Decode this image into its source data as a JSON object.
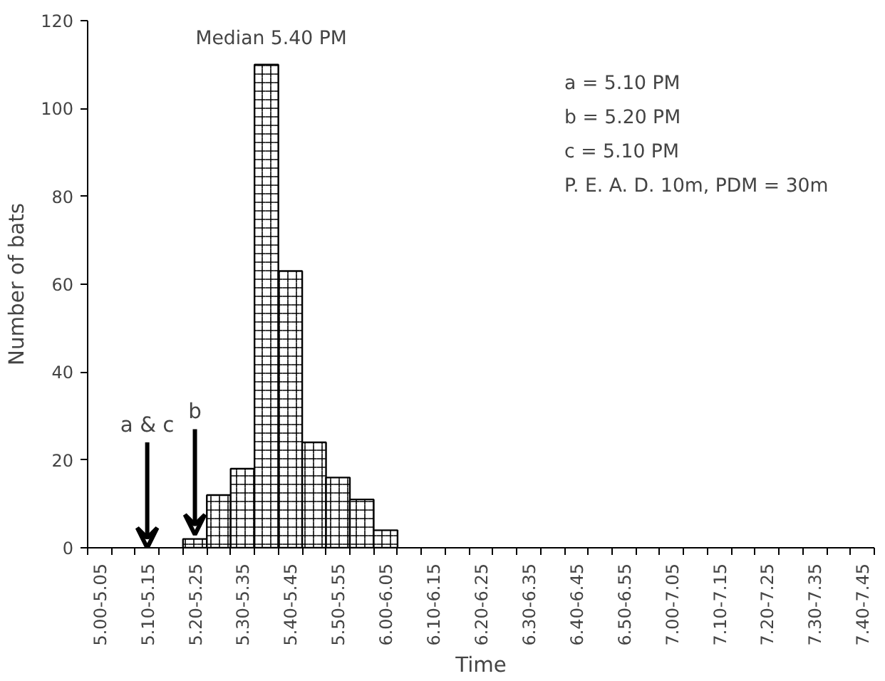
{
  "chart_data": {
    "type": "bar",
    "xlabel": "Time",
    "ylabel": "Number of bats",
    "categories": [
      "5.00-5.05",
      null,
      "5.10-5.15",
      null,
      "5.20-5.25",
      null,
      "5.30-5.35",
      null,
      "5.40-5.45",
      null,
      "5.50-5.55",
      null,
      "6.00-6.05",
      null,
      "6.10-6.15",
      null,
      "6.20-6.25",
      null,
      "6.30-6.35",
      null,
      "6.40-6.45",
      null,
      "6.50-6.55",
      null,
      "7.00-7.05",
      null,
      "7.10-7.15",
      null,
      "7.20-7.25",
      null,
      "7.30-7.35",
      null,
      "7.40-7.45"
    ],
    "values": [
      0,
      0,
      0,
      0,
      2,
      12,
      18,
      110,
      63,
      24,
      16,
      11,
      4,
      0,
      0,
      0,
      0,
      0,
      0,
      0,
      0,
      0,
      0,
      0,
      0,
      0,
      0,
      0,
      0,
      0,
      0,
      0,
      0
    ],
    "color": "#ffffff",
    "ylim": [
      0,
      120
    ],
    "yticks": [
      0,
      20,
      40,
      60,
      80,
      100,
      120
    ],
    "grid": false,
    "annotations": [
      "Median 5.40 PM",
      "a = 5.10 PM",
      "b = 5.20 PM",
      "c = 5.10 PM",
      "P. E. A. D. 10m, PDM = 30m",
      {
        "text": "a & c",
        "x": "5.10-5.15",
        "y": 0
      },
      {
        "text": "b",
        "x": "5.20-5.25",
        "y": 3
      }
    ]
  }
}
